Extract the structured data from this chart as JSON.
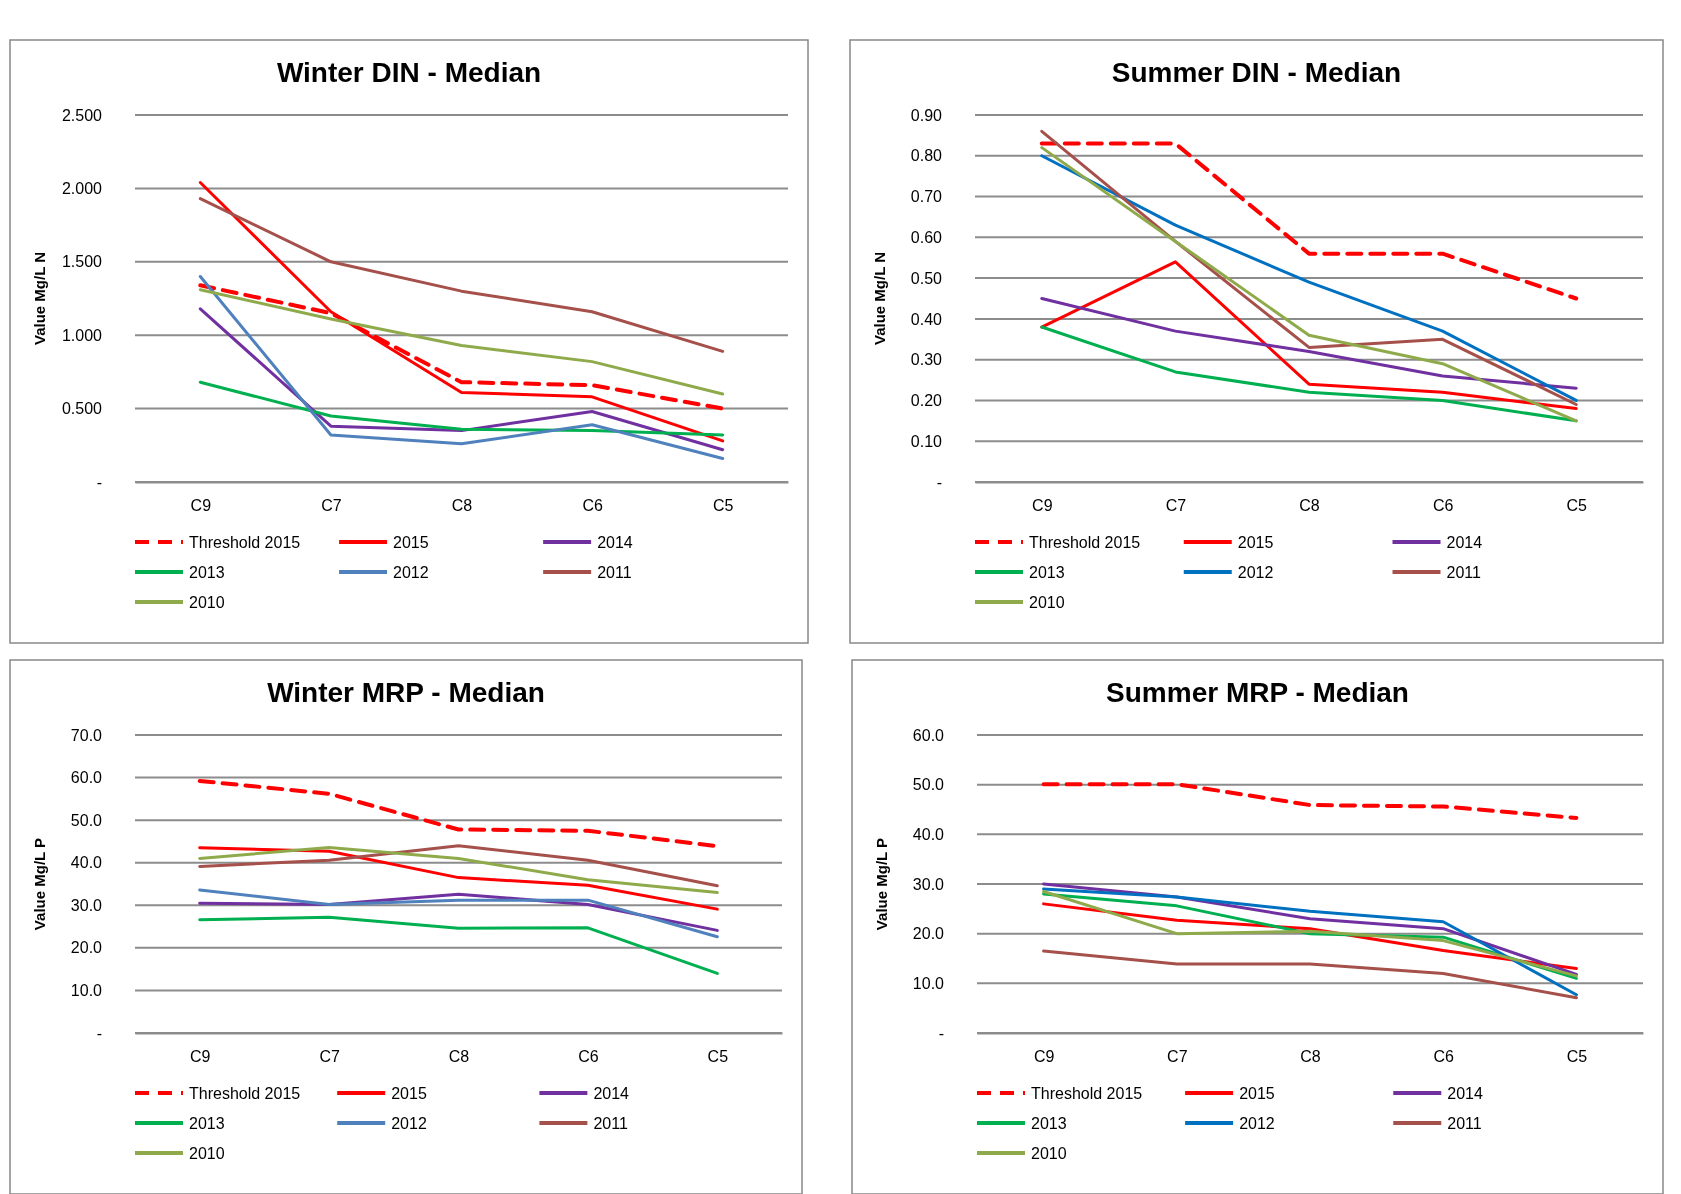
{
  "chart_data": [
    {
      "type": "line",
      "title": "Winter DIN - Median",
      "ylabel": "Value Mg/L N",
      "categories": [
        "C9",
        "C7",
        "C8",
        "C6",
        "C5"
      ],
      "ylim": [
        0,
        2.5
      ],
      "yticks": [
        {
          "value": 0,
          "label": "-"
        },
        {
          "value": 0.5,
          "label": "0.500"
        },
        {
          "value": 1,
          "label": "1.000"
        },
        {
          "value": 1.5,
          "label": "1.500"
        },
        {
          "value": 2,
          "label": "2.000"
        },
        {
          "value": 2.5,
          "label": "2.500"
        }
      ],
      "grid": "y",
      "legend": "bottom",
      "marker": "none",
      "series": [
        {
          "name": "Threshold 2015",
          "color": "#ff0000",
          "line_style": "dashed",
          "values": [
            1.34,
            1.15,
            0.68,
            0.66,
            0.5
          ]
        },
        {
          "name": "2015",
          "color": "#ff0000",
          "values": [
            2.04,
            1.16,
            0.61,
            0.58,
            0.28
          ]
        },
        {
          "name": "2014",
          "color": "#7030a0",
          "values": [
            1.18,
            0.38,
            0.35,
            0.48,
            0.22
          ]
        },
        {
          "name": "2013",
          "color": "#00b050",
          "values": [
            0.68,
            0.45,
            0.36,
            0.35,
            0.32
          ]
        },
        {
          "name": "2012",
          "color": "#4f81bd",
          "values": [
            1.4,
            0.32,
            0.26,
            0.39,
            0.16
          ]
        },
        {
          "name": "2011",
          "color": "#a5504a",
          "values": [
            1.93,
            1.5,
            1.3,
            1.16,
            0.89
          ]
        },
        {
          "name": "2010",
          "color": "#8faa4b",
          "values": [
            1.31,
            1.11,
            0.93,
            0.82,
            0.6
          ]
        }
      ]
    },
    {
      "type": "line",
      "title": "Summer DIN - Median",
      "ylabel": "Value Mg/L N",
      "categories": [
        "C9",
        "C7",
        "C8",
        "C6",
        "C5"
      ],
      "ylim": [
        0,
        0.9
      ],
      "yticks": [
        {
          "value": 0,
          "label": "-"
        },
        {
          "value": 0.1,
          "label": "0.10"
        },
        {
          "value": 0.2,
          "label": "0.20"
        },
        {
          "value": 0.3,
          "label": "0.30"
        },
        {
          "value": 0.4,
          "label": "0.40"
        },
        {
          "value": 0.5,
          "label": "0.50"
        },
        {
          "value": 0.6,
          "label": "0.60"
        },
        {
          "value": 0.7,
          "label": "0.70"
        },
        {
          "value": 0.8,
          "label": "0.80"
        },
        {
          "value": 0.9,
          "label": "0.90"
        }
      ],
      "grid": "y",
      "legend": "bottom",
      "marker": "none",
      "series": [
        {
          "name": "Threshold 2015",
          "color": "#ff0000",
          "line_style": "dashed",
          "values": [
            0.83,
            0.83,
            0.56,
            0.56,
            0.45
          ]
        },
        {
          "name": "2015",
          "color": "#ff0000",
          "values": [
            0.38,
            0.54,
            0.24,
            0.22,
            0.18
          ]
        },
        {
          "name": "2014",
          "color": "#7030a0",
          "values": [
            0.45,
            0.37,
            0.32,
            0.26,
            0.23
          ]
        },
        {
          "name": "2013",
          "color": "#00b050",
          "values": [
            0.38,
            0.27,
            0.22,
            0.2,
            0.15
          ]
        },
        {
          "name": "2012",
          "color": "#0070c0",
          "values": [
            0.8,
            0.63,
            0.49,
            0.37,
            0.2
          ]
        },
        {
          "name": "2011",
          "color": "#a5504a",
          "values": [
            0.86,
            0.59,
            0.33,
            0.35,
            0.19
          ]
        },
        {
          "name": "2010",
          "color": "#8faa4b",
          "values": [
            0.82,
            0.59,
            0.36,
            0.29,
            0.15
          ]
        }
      ]
    },
    {
      "type": "line",
      "title": "Winter MRP - Median",
      "ylabel": "Value Mg/L P",
      "categories": [
        "C9",
        "C7",
        "C8",
        "C6",
        "C5"
      ],
      "ylim": [
        0,
        70
      ],
      "yticks": [
        {
          "value": 0,
          "label": "-"
        },
        {
          "value": 10,
          "label": "10.0"
        },
        {
          "value": 20,
          "label": "20.0"
        },
        {
          "value": 30,
          "label": "30.0"
        },
        {
          "value": 40,
          "label": "40.0"
        },
        {
          "value": 50,
          "label": "50.0"
        },
        {
          "value": 60,
          "label": "60.0"
        },
        {
          "value": 70,
          "label": "70.0"
        }
      ],
      "grid": "y",
      "legend": "bottom",
      "marker": "none",
      "series": [
        {
          "name": "Threshold 2015",
          "color": "#ff0000",
          "line_style": "dashed",
          "values": [
            59.2,
            56.2,
            47.8,
            47.5,
            43.9
          ]
        },
        {
          "name": "2015",
          "color": "#ff0000",
          "values": [
            43.5,
            42.7,
            36.5,
            34.7,
            29.1
          ]
        },
        {
          "name": "2014",
          "color": "#7030a0",
          "values": [
            30.5,
            30.2,
            32.6,
            30.2,
            24.1
          ]
        },
        {
          "name": "2013",
          "color": "#00b050",
          "values": [
            26.6,
            27.2,
            24.6,
            24.7,
            14.0
          ]
        },
        {
          "name": "2012",
          "color": "#4f81bd",
          "values": [
            33.6,
            30.2,
            31.2,
            31.2,
            22.6
          ]
        },
        {
          "name": "2011",
          "color": "#a5504a",
          "values": [
            39.1,
            40.6,
            44.0,
            40.6,
            34.6
          ]
        },
        {
          "name": "2010",
          "color": "#8faa4b",
          "values": [
            41.0,
            43.6,
            41.0,
            36.0,
            33.0
          ]
        }
      ]
    },
    {
      "type": "line",
      "title": "Summer MRP - Median",
      "ylabel": "Value Mg/L P",
      "categories": [
        "C9",
        "C7",
        "C8",
        "C6",
        "C5"
      ],
      "ylim": [
        0,
        60
      ],
      "yticks": [
        {
          "value": 0,
          "label": "-"
        },
        {
          "value": 10,
          "label": "10.0"
        },
        {
          "value": 20,
          "label": "20.0"
        },
        {
          "value": 30,
          "label": "30.0"
        },
        {
          "value": 40,
          "label": "40.0"
        },
        {
          "value": 50,
          "label": "50.0"
        },
        {
          "value": 60,
          "label": "60.0"
        }
      ],
      "grid": "y",
      "legend": "bottom",
      "marker": "none",
      "series": [
        {
          "name": "Threshold 2015",
          "color": "#ff0000",
          "line_style": "dashed",
          "values": [
            50.1,
            50.1,
            45.9,
            45.6,
            43.3
          ]
        },
        {
          "name": "2015",
          "color": "#ff0000",
          "values": [
            26.0,
            22.7,
            21.0,
            16.6,
            13.0
          ]
        },
        {
          "name": "2014",
          "color": "#7030a0",
          "values": [
            30.0,
            27.4,
            23.0,
            21.0,
            11.8
          ]
        },
        {
          "name": "2013",
          "color": "#00b050",
          "values": [
            28.0,
            25.6,
            20.0,
            19.3,
            11.0
          ]
        },
        {
          "name": "2012",
          "color": "#0070c0",
          "values": [
            29.0,
            27.4,
            24.5,
            22.4,
            7.7
          ]
        },
        {
          "name": "2011",
          "color": "#a5504a",
          "values": [
            16.5,
            13.9,
            13.9,
            12.0,
            7.1
          ]
        },
        {
          "name": "2010",
          "color": "#8faa4b",
          "values": [
            28.5,
            20.0,
            20.5,
            18.6,
            11.5
          ]
        }
      ]
    }
  ]
}
